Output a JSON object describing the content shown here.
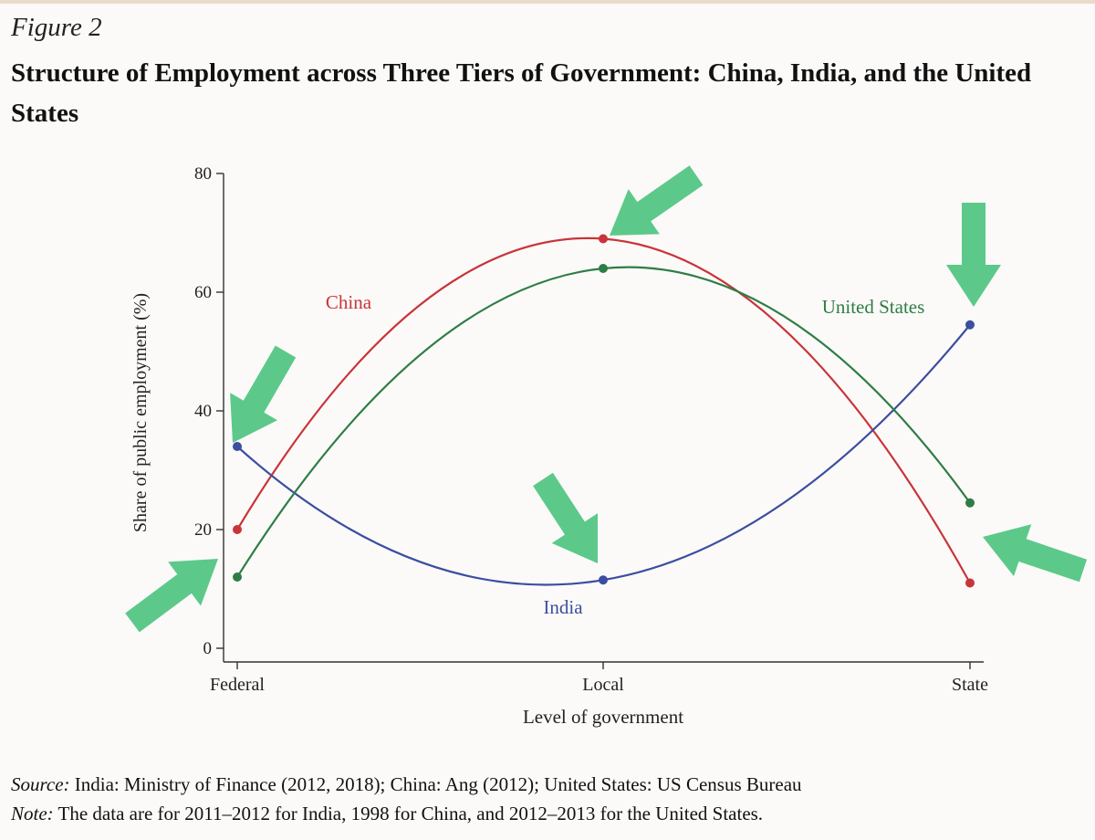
{
  "figure": {
    "label": "Figure 2",
    "title": "Structure of Employment across Three Tiers of Government: China, India, and the United States"
  },
  "chart_data": {
    "type": "line",
    "xlabel": "Level of government",
    "ylabel": "Share of public employment (%)",
    "categories": [
      "Federal",
      "Local",
      "State"
    ],
    "ylim": [
      0,
      80
    ],
    "yticks": [
      "0",
      "20",
      "40",
      "60",
      "80"
    ],
    "series": [
      {
        "name": "China",
        "color": "#c9343a",
        "values": [
          20,
          69,
          11
        ]
      },
      {
        "name": "India",
        "color": "#3b4ea0",
        "values": [
          34,
          11.5,
          54.5
        ]
      },
      {
        "name": "United States",
        "color": "#2e7d46",
        "values": [
          12,
          64,
          24.5
        ]
      }
    ],
    "annotation_arrows": {
      "color": "#5cc98a",
      "count": 6
    }
  },
  "notes": {
    "source_label": "Source:",
    "source_text": " India: Ministry of Finance (2012, 2018); China: Ang (2012); United States: US Census Bureau",
    "note_label": "Note:",
    "note_text": " The data are for 2011–2012 for India, 1998 for China, and 2012–2013 for the United States."
  }
}
